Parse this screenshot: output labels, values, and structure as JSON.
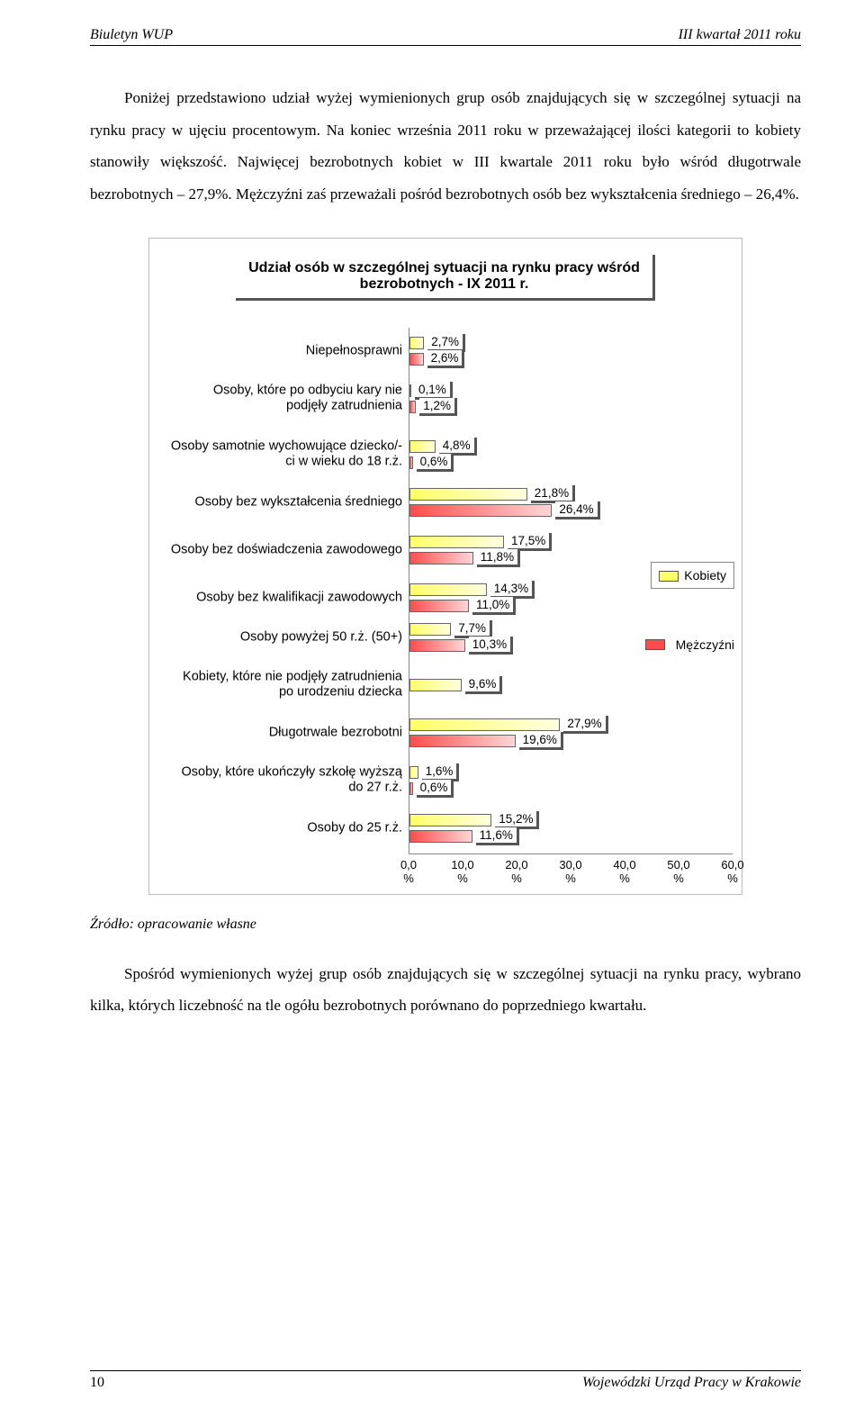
{
  "header": {
    "left": "Biuletyn WUP",
    "right": "III kwartał 2011 roku"
  },
  "para1": "Poniżej przedstawiono udział wyżej wymienionych grup osób znajdujących się w szczególnej sytuacji na rynku pracy w ujęciu procentowym. Na koniec września 2011 roku w przeważającej ilości kategorii to kobiety stanowiły większość. Najwięcej bezrobotnych kobiet w III kwartale 2011 roku było wśród długotrwale bezrobotnych – 27,9%. Mężczyźni zaś przeważali pośród bezrobotnych osób bez wykształcenia średniego – 26,4%.",
  "chart": {
    "type": "grouped-horizontal-bar",
    "title_line1": "Udział osób w szczególnej sytuacji na rynku pracy wśród",
    "title_line2": "bezrobotnych - IX 2011 r.",
    "title_fontsize": 16,
    "label_fontsize": 14.5,
    "value_fontsize": 13.5,
    "colors": {
      "kobiety_fill": "linear-gradient(to right,#ffff66,#ffffcc)",
      "mezczyzni_fill": "linear-gradient(to right,#ff3333,#ffcccc)",
      "kobiety_hex": "#ffff66",
      "mezczyzni_hex": "#ff4d4d",
      "border": "#666666",
      "shadow": "#555555",
      "axis": "#888888",
      "background": "#ffffff"
    },
    "x_axis": {
      "min": 0,
      "max": 60,
      "step": 10,
      "unit": "%",
      "ticks": [
        "0,0%",
        "10,0%",
        "20,0%",
        "30,0%",
        "40,0%",
        "50,0%",
        "60,0%"
      ]
    },
    "legend": {
      "kobiety": "Kobiety",
      "mezczyzni": "Mężczyźni"
    },
    "categories": [
      {
        "label": "Niepełnosprawni",
        "kobiety": 2.7,
        "mezczyzni": 2.6,
        "k_label": "2,7%",
        "m_label": "2,6%"
      },
      {
        "label": "Osoby, które po odbyciu kary nie podjęły zatrudnienia",
        "kobiety": 0.1,
        "mezczyzni": 1.2,
        "k_label": "0,1%",
        "m_label": "1,2%",
        "tall": true
      },
      {
        "label": "Osoby samotnie wychowujące dziecko/-ci w wieku do 18 r.ż.",
        "kobiety": 4.8,
        "mezczyzni": 0.6,
        "k_label": "4,8%",
        "m_label": "0,6%",
        "tall": true
      },
      {
        "label": "Osoby bez wykształcenia średniego",
        "kobiety": 21.8,
        "mezczyzni": 26.4,
        "k_label": "21,8%",
        "m_label": "26,4%"
      },
      {
        "label": "Osoby bez doświadczenia zawodowego",
        "kobiety": 17.5,
        "mezczyzni": 11.8,
        "k_label": "17,5%",
        "m_label": "11,8%",
        "tall": true
      },
      {
        "label": "Osoby bez kwalifikacji zawodowych",
        "kobiety": 14.3,
        "mezczyzni": 11.0,
        "k_label": "14,3%",
        "m_label": "11,0%"
      },
      {
        "label": "Osoby powyżej 50 r.ż. (50+)",
        "kobiety": 7.7,
        "mezczyzni": 10.3,
        "k_label": "7,7%",
        "m_label": "10,3%"
      },
      {
        "label": "Kobiety, które nie podjęły zatrudnienia po urodzeniu dziecka",
        "kobiety": 9.6,
        "mezczyzni": null,
        "k_label": "9,6%",
        "m_label": "",
        "tall": true
      },
      {
        "label": "Długotrwale bezrobotni",
        "kobiety": 27.9,
        "mezczyzni": 19.6,
        "k_label": "27,9%",
        "m_label": "19,6%"
      },
      {
        "label": "Osoby, które ukończyły szkołę wyższą do 27 r.ż.",
        "kobiety": 1.6,
        "mezczyzni": 0.6,
        "k_label": "1,6%",
        "m_label": "0,6%",
        "tall": true
      },
      {
        "label": "Osoby do 25 r.ż.",
        "kobiety": 15.2,
        "mezczyzni": 11.6,
        "k_label": "15,2%",
        "m_label": "11,6%"
      }
    ]
  },
  "source": "Źródło: opracowanie własne",
  "para2": "Spośród wymienionych wyżej grup osób znajdujących się w szczególnej sytuacji na rynku pracy, wybrano kilka, których liczebność na tle ogółu bezrobotnych porównano do poprzedniego kwartału.",
  "footer": {
    "page": "10",
    "publisher": "Wojewódzki Urząd Pracy w Krakowie"
  }
}
